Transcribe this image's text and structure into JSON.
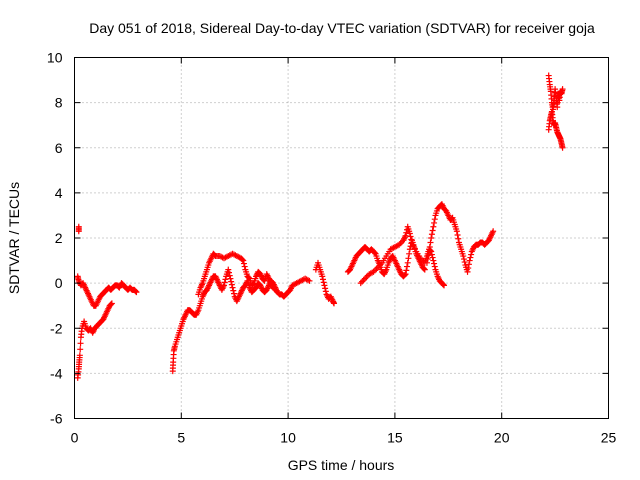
{
  "chart_data": {
    "type": "scatter",
    "title": "Day 051 of 2018, Sidereal Day-to-day VTEC variation (SDTVAR) for receiver goja",
    "xlabel": "GPS time / hours",
    "ylabel": "SDTVAR / TECUs",
    "xlim": [
      0,
      25
    ],
    "ylim": [
      -6,
      10
    ],
    "xticks": [
      0,
      5,
      10,
      15,
      20,
      25
    ],
    "yticks": [
      -6,
      -4,
      -2,
      0,
      2,
      4,
      6,
      8,
      10
    ],
    "grid": true,
    "marker": "+",
    "series": [
      {
        "name": "SDTVAR",
        "color": "#ff0000",
        "segments": [
          [
            [
              0.2,
              2.5
            ],
            [
              0.2,
              2.3
            ]
          ],
          [
            [
              0.15,
              0.3
            ],
            [
              0.2,
              0.1
            ],
            [
              0.3,
              -0.1
            ],
            [
              0.4,
              0.0
            ],
            [
              0.5,
              -0.2
            ],
            [
              0.6,
              -0.4
            ],
            [
              0.7,
              -0.6
            ],
            [
              0.8,
              -0.8
            ],
            [
              0.9,
              -1.0
            ],
            [
              1.0,
              -1.0
            ],
            [
              1.1,
              -0.8
            ],
            [
              1.2,
              -0.6
            ],
            [
              1.3,
              -0.5
            ],
            [
              1.4,
              -0.4
            ],
            [
              1.5,
              -0.3
            ],
            [
              1.6,
              -0.2
            ],
            [
              1.7,
              -0.3
            ],
            [
              1.8,
              -0.2
            ],
            [
              1.9,
              -0.1
            ],
            [
              2.0,
              -0.1
            ],
            [
              2.1,
              -0.2
            ],
            [
              2.2,
              0.0
            ],
            [
              2.3,
              -0.1
            ],
            [
              2.4,
              -0.2
            ],
            [
              2.5,
              -0.3
            ],
            [
              2.6,
              -0.2
            ],
            [
              2.7,
              -0.3
            ],
            [
              2.8,
              -0.3
            ],
            [
              2.9,
              -0.4
            ]
          ],
          [
            [
              0.15,
              -4.2
            ],
            [
              0.2,
              -3.8
            ],
            [
              0.22,
              -3.5
            ],
            [
              0.25,
              -3.2
            ],
            [
              0.3,
              -2.4
            ],
            [
              0.35,
              -2.0
            ],
            [
              0.45,
              -1.7
            ],
            [
              0.55,
              -2.0
            ],
            [
              0.65,
              -2.1
            ],
            [
              0.75,
              -2.0
            ],
            [
              0.85,
              -2.2
            ],
            [
              0.95,
              -2.0
            ],
            [
              1.05,
              -1.9
            ],
            [
              1.15,
              -1.8
            ],
            [
              1.25,
              -1.7
            ],
            [
              1.35,
              -1.6
            ],
            [
              1.45,
              -1.4
            ],
            [
              1.55,
              -1.2
            ],
            [
              1.65,
              -1.0
            ],
            [
              1.75,
              -0.9
            ]
          ],
          [
            [
              4.6,
              -3.9
            ],
            [
              4.62,
              -3.5
            ],
            [
              4.65,
              -3.0
            ],
            [
              4.7,
              -2.8
            ],
            [
              4.8,
              -2.5
            ],
            [
              4.9,
              -2.2
            ],
            [
              5.0,
              -1.9
            ],
            [
              5.1,
              -1.6
            ],
            [
              5.2,
              -1.4
            ],
            [
              5.3,
              -1.2
            ],
            [
              5.4,
              -1.2
            ],
            [
              5.5,
              -1.3
            ],
            [
              5.6,
              -1.4
            ],
            [
              5.7,
              -1.4
            ],
            [
              5.8,
              -1.2
            ],
            [
              5.9,
              -0.9
            ],
            [
              6.0,
              -0.6
            ],
            [
              6.1,
              -0.4
            ],
            [
              6.2,
              -0.3
            ],
            [
              6.3,
              -0.1
            ],
            [
              6.4,
              0.1
            ],
            [
              6.5,
              0.3
            ],
            [
              6.6,
              0.3
            ],
            [
              6.7,
              0.1
            ],
            [
              6.8,
              -0.1
            ],
            [
              6.9,
              -0.3
            ],
            [
              7.0,
              -0.1
            ],
            [
              7.1,
              0.3
            ],
            [
              7.2,
              0.6
            ],
            [
              7.3,
              0.2
            ],
            [
              7.4,
              -0.2
            ],
            [
              7.5,
              -0.6
            ],
            [
              7.6,
              -0.8
            ],
            [
              7.7,
              -0.6
            ],
            [
              7.8,
              -0.4
            ],
            [
              7.9,
              -0.2
            ],
            [
              8.0,
              -0.1
            ],
            [
              8.1,
              0.1
            ],
            [
              8.2,
              -0.2
            ],
            [
              8.3,
              -0.4
            ],
            [
              8.4,
              -0.3
            ],
            [
              8.5,
              -0.2
            ],
            [
              8.6,
              0.0
            ],
            [
              8.7,
              -0.1
            ],
            [
              8.8,
              -0.3
            ],
            [
              8.9,
              -0.4
            ],
            [
              9.0,
              -0.3
            ],
            [
              9.1,
              -0.1
            ],
            [
              9.2,
              0.1
            ],
            [
              9.3,
              0.0
            ],
            [
              9.4,
              -0.2
            ],
            [
              9.5,
              -0.4
            ],
            [
              9.6,
              -0.5
            ],
            [
              9.7,
              -0.5
            ],
            [
              9.8,
              -0.6
            ],
            [
              9.9,
              -0.5
            ],
            [
              10.0,
              -0.4
            ],
            [
              10.1,
              -0.3
            ],
            [
              10.2,
              -0.1
            ],
            [
              10.4,
              0.0
            ],
            [
              10.6,
              0.1
            ],
            [
              10.8,
              0.2
            ],
            [
              11.0,
              0.1
            ]
          ],
          [
            [
              5.8,
              -0.5
            ],
            [
              5.9,
              -0.2
            ],
            [
              6.0,
              0.0
            ],
            [
              6.1,
              0.3
            ],
            [
              6.2,
              0.6
            ],
            [
              6.3,
              0.9
            ],
            [
              6.4,
              1.1
            ],
            [
              6.5,
              1.3
            ],
            [
              6.6,
              1.2
            ],
            [
              6.8,
              1.2
            ],
            [
              7.0,
              1.1
            ],
            [
              7.2,
              1.2
            ],
            [
              7.4,
              1.3
            ],
            [
              7.6,
              1.2
            ],
            [
              7.8,
              1.1
            ],
            [
              7.9,
              1.0
            ],
            [
              8.0,
              0.6
            ],
            [
              8.1,
              0.3
            ],
            [
              8.2,
              0.2
            ],
            [
              8.3,
              -0.1
            ],
            [
              8.4,
              0.0
            ],
            [
              8.5,
              0.3
            ],
            [
              8.6,
              0.5
            ],
            [
              8.7,
              0.4
            ],
            [
              8.8,
              0.2
            ],
            [
              8.9,
              0.1
            ],
            [
              9.0,
              0.4
            ],
            [
              9.1,
              0.2
            ],
            [
              9.2,
              0.0
            ],
            [
              9.3,
              -0.2
            ],
            [
              9.4,
              -0.3
            ]
          ],
          [
            [
              11.3,
              0.6
            ],
            [
              11.4,
              0.9
            ],
            [
              11.5,
              0.6
            ],
            [
              11.6,
              0.3
            ],
            [
              11.7,
              -0.1
            ],
            [
              11.8,
              -0.5
            ],
            [
              11.9,
              -0.7
            ],
            [
              12.0,
              -0.6
            ],
            [
              12.1,
              -0.8
            ],
            [
              12.15,
              -0.9
            ]
          ],
          [
            [
              12.8,
              0.5
            ],
            [
              12.9,
              0.6
            ],
            [
              13.0,
              0.8
            ],
            [
              13.1,
              1.0
            ],
            [
              13.2,
              1.2
            ],
            [
              13.3,
              1.3
            ],
            [
              13.4,
              1.4
            ],
            [
              13.5,
              1.5
            ],
            [
              13.6,
              1.6
            ],
            [
              13.7,
              1.5
            ],
            [
              13.8,
              1.4
            ],
            [
              13.9,
              1.5
            ],
            [
              14.0,
              1.4
            ],
            [
              14.1,
              1.3
            ],
            [
              14.2,
              1.0
            ],
            [
              14.3,
              0.8
            ],
            [
              14.4,
              0.5
            ],
            [
              14.5,
              0.4
            ],
            [
              14.6,
              0.6
            ],
            [
              14.7,
              0.9
            ],
            [
              14.8,
              1.1
            ],
            [
              14.9,
              1.2
            ],
            [
              15.0,
              1.0
            ],
            [
              15.1,
              0.8
            ],
            [
              15.2,
              0.6
            ],
            [
              15.3,
              0.4
            ],
            [
              15.4,
              0.3
            ],
            [
              15.5,
              0.4
            ],
            [
              15.6,
              0.9
            ],
            [
              15.7,
              1.5
            ],
            [
              15.8,
              1.9
            ],
            [
              15.9,
              1.6
            ],
            [
              16.0,
              1.3
            ],
            [
              16.1,
              1.1
            ],
            [
              16.2,
              0.9
            ],
            [
              16.3,
              0.7
            ],
            [
              16.4,
              0.6
            ]
          ],
          [
            [
              13.4,
              0.0
            ],
            [
              13.6,
              0.2
            ],
            [
              13.8,
              0.4
            ],
            [
              14.0,
              0.5
            ],
            [
              14.2,
              0.7
            ],
            [
              14.4,
              0.9
            ],
            [
              14.6,
              1.2
            ],
            [
              14.8,
              1.5
            ],
            [
              15.0,
              1.6
            ],
            [
              15.2,
              1.7
            ],
            [
              15.4,
              1.9
            ],
            [
              15.5,
              2.1
            ],
            [
              15.6,
              2.5
            ],
            [
              15.7,
              2.2
            ],
            [
              15.8,
              1.8
            ],
            [
              16.0,
              1.4
            ],
            [
              16.2,
              1.1
            ],
            [
              16.4,
              0.9
            ],
            [
              16.5,
              1.2
            ],
            [
              16.6,
              1.5
            ],
            [
              16.7,
              1.4
            ],
            [
              16.8,
              1.0
            ],
            [
              16.9,
              0.6
            ],
            [
              17.0,
              0.3
            ],
            [
              17.1,
              0.1
            ],
            [
              17.2,
              0.0
            ],
            [
              17.3,
              -0.1
            ]
          ],
          [
            [
              16.5,
              0.9
            ],
            [
              16.6,
              1.4
            ],
            [
              16.7,
              2.0
            ],
            [
              16.8,
              2.5
            ],
            [
              16.9,
              3.0
            ],
            [
              17.0,
              3.3
            ],
            [
              17.1,
              3.4
            ],
            [
              17.2,
              3.5
            ],
            [
              17.3,
              3.3
            ],
            [
              17.4,
              3.2
            ],
            [
              17.5,
              3.0
            ],
            [
              17.6,
              2.8
            ],
            [
              17.7,
              2.9
            ],
            [
              17.8,
              2.6
            ],
            [
              17.9,
              2.3
            ],
            [
              18.0,
              1.8
            ],
            [
              18.1,
              1.5
            ],
            [
              18.2,
              1.2
            ],
            [
              18.3,
              0.8
            ],
            [
              18.4,
              0.5
            ],
            [
              18.5,
              1.0
            ],
            [
              18.6,
              1.4
            ],
            [
              18.7,
              1.6
            ],
            [
              18.8,
              1.7
            ],
            [
              18.9,
              1.7
            ],
            [
              19.0,
              1.8
            ],
            [
              19.1,
              1.8
            ],
            [
              19.2,
              1.7
            ],
            [
              19.3,
              1.8
            ],
            [
              19.4,
              1.9
            ],
            [
              19.5,
              2.1
            ],
            [
              19.6,
              2.3
            ]
          ],
          [
            [
              22.2,
              9.2
            ],
            [
              22.25,
              8.8
            ],
            [
              22.3,
              8.5
            ],
            [
              22.35,
              8.0
            ],
            [
              22.4,
              7.7
            ],
            [
              22.45,
              8.1
            ],
            [
              22.5,
              8.6
            ],
            [
              22.55,
              8.2
            ],
            [
              22.6,
              7.8
            ],
            [
              22.65,
              8.4
            ],
            [
              22.7,
              8.1
            ],
            [
              22.75,
              8.5
            ],
            [
              22.8,
              8.4
            ],
            [
              22.85,
              8.6
            ]
          ],
          [
            [
              22.2,
              6.8
            ],
            [
              22.25,
              7.2
            ],
            [
              22.3,
              7.4
            ],
            [
              22.35,
              7.6
            ],
            [
              22.4,
              7.2
            ],
            [
              22.45,
              7.0
            ],
            [
              22.5,
              7.1
            ],
            [
              22.55,
              6.9
            ],
            [
              22.6,
              6.7
            ],
            [
              22.65,
              6.6
            ],
            [
              22.7,
              6.5
            ],
            [
              22.75,
              6.4
            ],
            [
              22.8,
              6.2
            ],
            [
              22.85,
              6.0
            ]
          ]
        ]
      }
    ]
  }
}
